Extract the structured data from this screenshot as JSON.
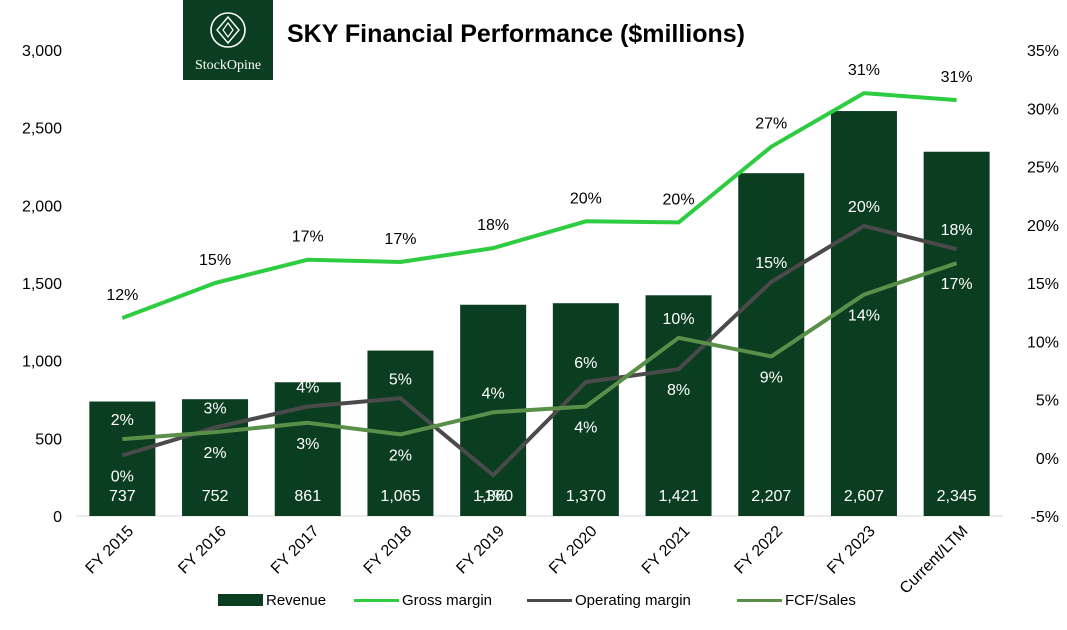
{
  "logo": {
    "text": "StockOpine"
  },
  "chart_data": {
    "type": "bar",
    "title": "SKY Financial Performance ($millions)",
    "categories": [
      "FY 2015",
      "FY 2016",
      "FY 2017",
      "FY 2018",
      "FY 2019",
      "FY 2020",
      "FY 2021",
      "FY 2022",
      "FY 2023",
      "Current/LTM"
    ],
    "left_axis": {
      "ylim": [
        0,
        3000
      ],
      "ticks": [
        "0",
        "500",
        "1,000",
        "1,500",
        "2,000",
        "2,500",
        "3,000"
      ]
    },
    "right_axis": {
      "ylim": [
        -5,
        35
      ],
      "ticks": [
        "-5%",
        "0%",
        "5%",
        "10%",
        "15%",
        "20%",
        "25%",
        "30%",
        "35%"
      ]
    },
    "bars": {
      "name": "Revenue",
      "color": "#0b3d20",
      "values": [
        737,
        752,
        861,
        1065,
        1360,
        1370,
        1421,
        2207,
        2607,
        2345
      ],
      "labels": [
        "737",
        "752",
        "861",
        "1,065",
        "1,360",
        "1,370",
        "1,421",
        "2,207",
        "2,607",
        "2,345"
      ]
    },
    "series": [
      {
        "name": "Gross margin",
        "color": "#2ecc40",
        "axis": "right",
        "values": [
          12,
          15,
          17,
          16.8,
          18,
          20.3,
          20.2,
          26.7,
          31.3,
          30.7
        ],
        "labels": [
          "12%",
          "15%",
          "17%",
          "17%",
          "18%",
          "20%",
          "20%",
          "27%",
          "31%",
          "31%"
        ]
      },
      {
        "name": "Operating margin",
        "color": "#4a4a4a",
        "axis": "right",
        "values": [
          0.2,
          2.6,
          4.4,
          5.1,
          -1.5,
          6.5,
          7.6,
          15.1,
          19.9,
          17.9
        ],
        "labels": [
          "0%",
          "3%",
          "4%",
          "5%",
          "-1%",
          "6%",
          "8%",
          "15%",
          "20%",
          "18%"
        ]
      },
      {
        "name": "FCF/Sales",
        "color": "#5a8f4a",
        "axis": "right",
        "values": [
          1.6,
          2.2,
          3.0,
          2.0,
          3.9,
          4.4,
          10.3,
          8.7,
          14.0,
          16.7
        ],
        "labels": [
          "2%",
          "2%",
          "3%",
          "2%",
          "4%",
          "4%",
          "10%",
          "9%",
          "14%",
          "17%"
        ]
      }
    ],
    "legend_position": "bottom",
    "grid": false
  }
}
